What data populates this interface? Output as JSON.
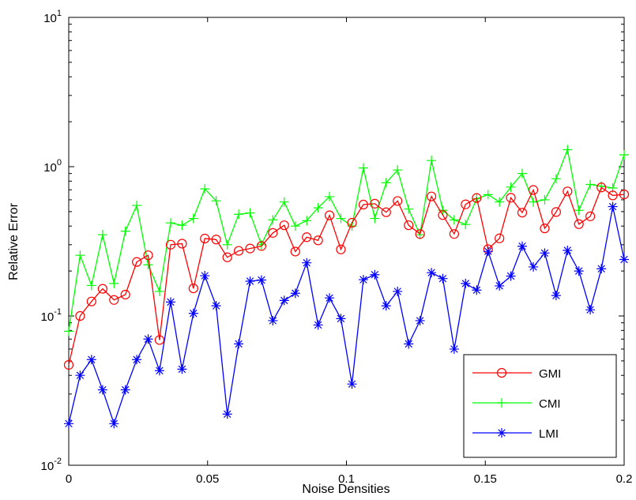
{
  "chart_data": {
    "type": "line",
    "title": "",
    "xlabel": "Noise Densities",
    "ylabel": "Relative Error",
    "xlim": [
      0,
      0.2
    ],
    "ylim": [
      0.01,
      10
    ],
    "yscale": "log",
    "xticks": [
      0,
      0.05,
      0.1,
      0.15,
      0.2
    ],
    "xtick_labels": [
      "0",
      "0.05",
      "0.1",
      "0.15",
      "0.2"
    ],
    "ytick_labels": [
      {
        "base": "10",
        "exp": "-2",
        "value": 0.01
      },
      {
        "base": "10",
        "exp": "-1",
        "value": 0.1
      },
      {
        "base": "10",
        "exp": "0",
        "value": 1
      },
      {
        "base": "10",
        "exp": "1",
        "value": 10
      }
    ],
    "grid": false,
    "legend_position": "bottom-right",
    "x": [
      0,
      0.0041,
      0.0082,
      0.0122,
      0.0163,
      0.0204,
      0.0245,
      0.0286,
      0.0327,
      0.0367,
      0.0408,
      0.0449,
      0.049,
      0.0531,
      0.0571,
      0.0612,
      0.0653,
      0.0694,
      0.0735,
      0.0776,
      0.0816,
      0.0857,
      0.0898,
      0.0939,
      0.098,
      0.102,
      0.1061,
      0.1102,
      0.1143,
      0.1184,
      0.1224,
      0.1265,
      0.1306,
      0.1347,
      0.1388,
      0.1429,
      0.1469,
      0.151,
      0.1551,
      0.1592,
      0.1633,
      0.1673,
      0.1714,
      0.1755,
      0.1796,
      0.1837,
      0.1878,
      0.1918,
      0.1959,
      0.2
    ],
    "series": [
      {
        "name": "GMI",
        "color": "#ff0000",
        "marker": "circle",
        "values": [
          0.047,
          0.1,
          0.125,
          0.152,
          0.128,
          0.139,
          0.23,
          0.255,
          0.069,
          0.3,
          0.305,
          0.153,
          0.33,
          0.325,
          0.247,
          0.273,
          0.283,
          0.294,
          0.36,
          0.405,
          0.27,
          0.337,
          0.321,
          0.472,
          0.279,
          0.421,
          0.557,
          0.565,
          0.495,
          0.589,
          0.405,
          0.354,
          0.632,
          0.474,
          0.354,
          0.559,
          0.617,
          0.28,
          0.331,
          0.619,
          0.492,
          0.698,
          0.386,
          0.497,
          0.683,
          0.412,
          0.465,
          0.726,
          0.642,
          0.652
        ]
      },
      {
        "name": "CMI",
        "color": "#00ff00",
        "marker": "plus",
        "values": [
          0.079,
          0.255,
          0.16,
          0.35,
          0.165,
          0.37,
          0.55,
          0.22,
          0.146,
          0.42,
          0.405,
          0.45,
          0.71,
          0.59,
          0.3,
          0.48,
          0.49,
          0.3,
          0.44,
          0.58,
          0.4,
          0.435,
          0.53,
          0.63,
          0.45,
          0.4,
          0.98,
          0.45,
          0.78,
          0.95,
          0.52,
          0.35,
          1.1,
          0.51,
          0.44,
          0.41,
          0.61,
          0.65,
          0.58,
          0.73,
          0.9,
          0.58,
          0.6,
          0.83,
          1.3,
          0.51,
          0.76,
          0.74,
          0.72,
          1.2
        ]
      },
      {
        "name": "LMI",
        "color": "#0000ff",
        "marker": "asterisk",
        "values": [
          0.019,
          0.04,
          0.051,
          0.032,
          0.019,
          0.032,
          0.051,
          0.07,
          0.043,
          0.124,
          0.044,
          0.104,
          0.186,
          0.117,
          0.022,
          0.065,
          0.171,
          0.174,
          0.093,
          0.127,
          0.142,
          0.227,
          0.087,
          0.132,
          0.096,
          0.035,
          0.175,
          0.189,
          0.117,
          0.146,
          0.065,
          0.093,
          0.195,
          0.178,
          0.06,
          0.165,
          0.149,
          0.271,
          0.159,
          0.185,
          0.293,
          0.213,
          0.264,
          0.137,
          0.275,
          0.2,
          0.11,
          0.207,
          0.54,
          0.239
        ]
      }
    ]
  }
}
